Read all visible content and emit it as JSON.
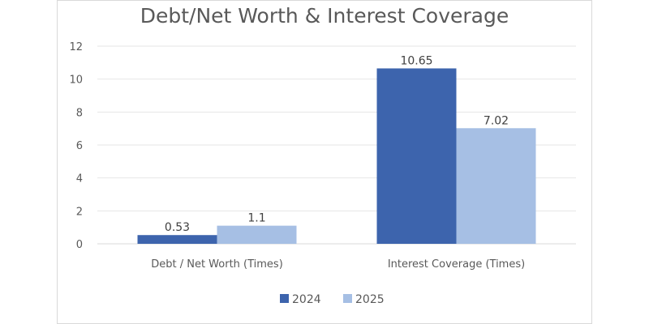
{
  "chart_data": {
    "type": "bar",
    "title": "Debt/Net Worth & Interest Coverage",
    "categories": [
      "Debt / Net Worth (Times)",
      "Interest Coverage (Times)"
    ],
    "series": [
      {
        "name": "2024",
        "values": [
          0.53,
          10.65
        ],
        "labels": [
          "0.53",
          "10.65"
        ],
        "color": "#3d64ad"
      },
      {
        "name": "2025",
        "values": [
          1.1,
          7.02
        ],
        "labels": [
          "1.1",
          "7.02"
        ],
        "color": "#a6bfe4"
      }
    ],
    "ylim": [
      0,
      12
    ],
    "yticks": [
      "0",
      "2",
      "4",
      "6",
      "8",
      "10",
      "12"
    ],
    "grid": true,
    "legend": "bottom"
  }
}
